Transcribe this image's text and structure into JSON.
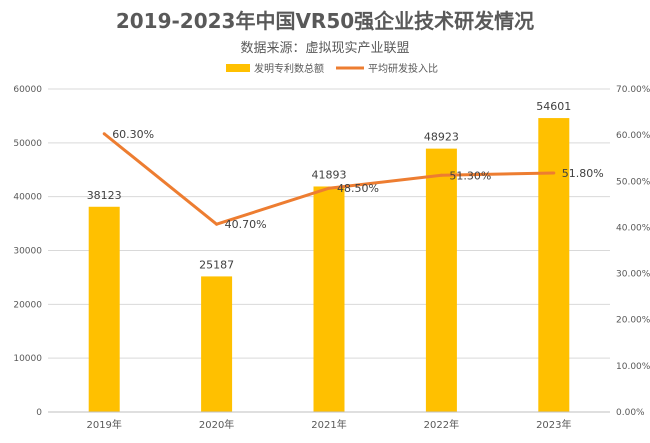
{
  "chart_data": {
    "type": "bar+line",
    "title": "2019-2023年中国VR50强企业技术研发情况",
    "subtitle": "数据来源：虚拟现实产业联盟",
    "categories": [
      "2019年",
      "2020年",
      "2021年",
      "2022年",
      "2023年"
    ],
    "series": [
      {
        "name": "发明专利数总额",
        "type": "bar",
        "axis": "left",
        "values": [
          38123,
          25187,
          41893,
          48923,
          54601
        ],
        "labels": [
          "38123",
          "25187",
          "41893",
          "48923",
          "54601"
        ],
        "color": "#FFC000"
      },
      {
        "name": "平均研发投入比",
        "type": "line",
        "axis": "right",
        "values": [
          60.3,
          40.7,
          48.5,
          51.3,
          51.8
        ],
        "labels": [
          "60.30%",
          "40.70%",
          "48.50%",
          "51.30%",
          "51.80%"
        ],
        "color": "#ED7D31"
      }
    ],
    "y_left": {
      "range": [
        0,
        60000
      ],
      "ticks": [
        "0",
        "10000",
        "20000",
        "30000",
        "40000",
        "50000",
        "60000"
      ]
    },
    "y_right": {
      "range": [
        0,
        70
      ],
      "ticks": [
        "0.00%",
        "10.00%",
        "20.00%",
        "30.00%",
        "40.00%",
        "50.00%",
        "60.00%",
        "70.00%"
      ]
    },
    "grid": true,
    "legend_position": "top"
  }
}
